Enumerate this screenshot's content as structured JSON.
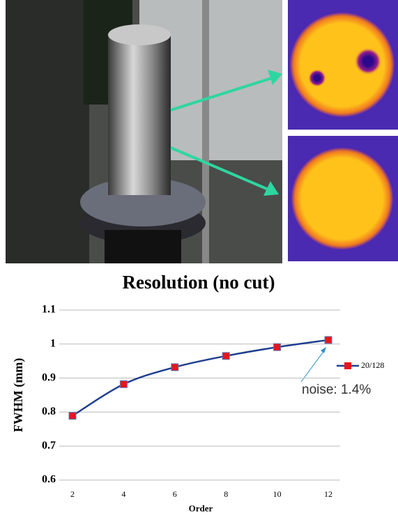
{
  "chart_data": {
    "type": "line",
    "title": "Resolution (no cut)",
    "y_label": "FWHM (mm)",
    "x_label": "Order",
    "x": [
      2,
      4,
      6,
      8,
      10,
      12
    ],
    "series": [
      {
        "name": "20/128",
        "color": "#1f3f8f",
        "marker_color": "#e8141c",
        "values": [
          0.789,
          0.882,
          0.932,
          0.965,
          0.991,
          1.012
        ]
      }
    ],
    "xlim": [
      2,
      12
    ],
    "xticks": [
      2,
      4,
      6,
      8,
      10,
      12
    ],
    "ylim": [
      0.6,
      1.1
    ],
    "yticks": [
      0.6,
      0.7,
      0.8,
      0.9,
      1,
      1.1
    ],
    "grid": true,
    "legend": "right",
    "annotation": "noise: 1.4%"
  }
}
